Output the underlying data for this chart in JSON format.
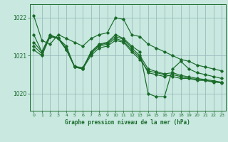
{
  "title": "Graphe pression niveau de la mer (hPa)",
  "bg_color": "#c8e8e0",
  "grid_color": "#99bbbb",
  "line_color": "#1a6b2a",
  "xlim": [
    -0.5,
    23.5
  ],
  "ylim": [
    1019.55,
    1022.35
  ],
  "yticks": [
    1020,
    1021,
    1022
  ],
  "xticks": [
    0,
    1,
    2,
    3,
    4,
    5,
    6,
    7,
    8,
    9,
    10,
    11,
    12,
    13,
    14,
    15,
    16,
    17,
    18,
    19,
    20,
    21,
    22,
    23
  ],
  "series": [
    [
      1022.05,
      1021.4,
      1021.3,
      1021.55,
      1021.45,
      1021.35,
      1021.25,
      1021.45,
      1021.55,
      1021.6,
      1022.0,
      1021.95,
      1021.55,
      1021.5,
      1021.3,
      1021.2,
      1021.1,
      1021.0,
      1020.9,
      1020.85,
      1020.75,
      1020.7,
      1020.65,
      1020.6
    ],
    [
      1021.55,
      1021.1,
      1021.55,
      1021.45,
      1021.25,
      1020.7,
      1020.65,
      1021.1,
      1021.3,
      1021.35,
      1021.55,
      1021.45,
      1021.25,
      1021.1,
      1020.0,
      1019.92,
      1019.92,
      1020.65,
      1020.85,
      1020.65,
      1020.55,
      1020.5,
      1020.45,
      1020.4
    ],
    [
      1021.15,
      1021.0,
      1021.5,
      1021.45,
      1021.15,
      1020.7,
      1020.65,
      1021.0,
      1021.2,
      1021.25,
      1021.4,
      1021.35,
      1021.1,
      1020.9,
      1020.6,
      1020.55,
      1020.5,
      1020.45,
      1020.4,
      1020.4,
      1020.35,
      1020.35,
      1020.3,
      1020.3
    ],
    [
      1021.25,
      1021.05,
      1021.5,
      1021.45,
      1021.15,
      1020.72,
      1020.68,
      1021.05,
      1021.25,
      1021.3,
      1021.45,
      1021.38,
      1021.15,
      1020.95,
      1020.55,
      1020.5,
      1020.45,
      1020.5,
      1020.45,
      1020.4,
      1020.38,
      1020.35,
      1020.32,
      1020.28
    ],
    [
      1021.35,
      1021.1,
      1021.52,
      1021.47,
      1021.18,
      1020.71,
      1020.67,
      1021.08,
      1021.28,
      1021.33,
      1021.5,
      1021.43,
      1021.2,
      1021.0,
      1020.65,
      1020.58,
      1020.52,
      1020.55,
      1020.48,
      1020.44,
      1020.4,
      1020.37,
      1020.34,
      1020.3
    ]
  ]
}
